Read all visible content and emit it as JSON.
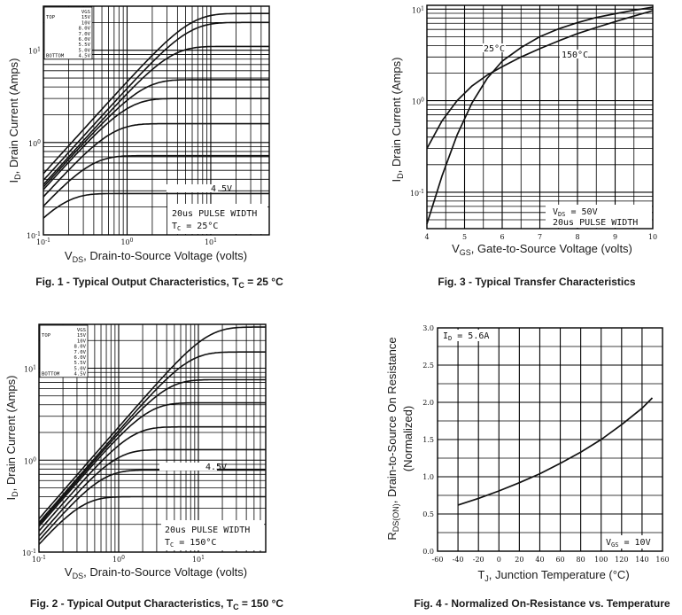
{
  "chart_data": [
    {
      "id": "fig1",
      "type": "line",
      "caption": "Fig. 1 -  Typical Output Characteristics, T",
      "caption_sub": "C",
      "caption_tail": " = 25 °C",
      "xlabel_pre": "V",
      "xlabel_sub": "DS",
      "xlabel_post": ", Drain-to-Source Voltage (volts)",
      "ylabel_pre": "I",
      "ylabel_sub": "D",
      "ylabel_post": ", Drain Current (Amps)",
      "xscale": "log",
      "yscale": "log",
      "xlim": [
        0.1,
        50
      ],
      "ylim": [
        0.1,
        30
      ],
      "x_ticks": [
        {
          "v": 0.1,
          "base": "10",
          "exp": "-1"
        },
        {
          "v": 1,
          "base": "10",
          "exp": "0"
        },
        {
          "v": 10,
          "base": "10",
          "exp": "1"
        }
      ],
      "y_ticks": [
        {
          "v": 0.1,
          "base": "10",
          "exp": "-1"
        },
        {
          "v": 1,
          "base": "10",
          "exp": "0"
        },
        {
          "v": 10,
          "base": "10",
          "exp": "1"
        }
      ],
      "legend": {
        "rows": [
          [
            "",
            "VGS"
          ],
          [
            "TOP",
            "15V"
          ],
          [
            "",
            "10V"
          ],
          [
            "",
            "8.0V"
          ],
          [
            "",
            "7.0V"
          ],
          [
            "",
            "6.0V"
          ],
          [
            "",
            "5.5V"
          ],
          [
            "",
            "5.0V"
          ],
          [
            "BOTTOM",
            "4.5V"
          ]
        ]
      },
      "curve_label": "4.5V",
      "note_lines": [
        {
          "pre": "20us PULSE WIDTH",
          "sub": "",
          "post": ""
        },
        {
          "pre": "T",
          "sub": "C",
          "post": " = 25°C"
        }
      ],
      "series": [
        {
          "name": "15V",
          "sat": 25,
          "k": 4.6
        },
        {
          "name": "10V",
          "sat": 20,
          "k": 3.9
        },
        {
          "name": "8.0V",
          "sat": 11,
          "k": 3.5
        },
        {
          "name": "7.0V",
          "sat": 4.8,
          "k": 3.3
        },
        {
          "name": "6.0V",
          "sat": 3.0,
          "k": 3.1
        },
        {
          "name": "5.5V",
          "sat": 1.6,
          "k": 2.6
        },
        {
          "name": "5.0V",
          "sat": 0.72,
          "k": 2.1
        },
        {
          "name": "4.5V",
          "sat": 0.28,
          "k": 1.7
        }
      ]
    },
    {
      "id": "fig2",
      "type": "line",
      "caption": "Fig. 2 - Typical Output Characteristics, T",
      "caption_sub": "C",
      "caption_tail": " = 150 °C",
      "xlabel_pre": "V",
      "xlabel_sub": "DS",
      "xlabel_post": ", Drain-to-Source Voltage (volts)",
      "ylabel_pre": "I",
      "ylabel_sub": "D",
      "ylabel_post": ", Drain Current (Amps)",
      "xscale": "log",
      "yscale": "log",
      "xlim": [
        0.1,
        70
      ],
      "ylim": [
        0.1,
        30
      ],
      "x_ticks": [
        {
          "v": 0.1,
          "base": "10",
          "exp": "-1"
        },
        {
          "v": 1,
          "base": "10",
          "exp": "0"
        },
        {
          "v": 10,
          "base": "10",
          "exp": "1"
        }
      ],
      "y_ticks": [
        {
          "v": 0.1,
          "base": "10",
          "exp": "-1"
        },
        {
          "v": 1,
          "base": "10",
          "exp": "0"
        },
        {
          "v": 10,
          "base": "10",
          "exp": "1"
        }
      ],
      "legend": {
        "rows": [
          [
            "",
            "VGS"
          ],
          [
            "TOP",
            "15V"
          ],
          [
            "",
            "10V"
          ],
          [
            "",
            "8.0V"
          ],
          [
            "",
            "7.0V"
          ],
          [
            "",
            "6.0V"
          ],
          [
            "",
            "5.5V"
          ],
          [
            "",
            "5.0V"
          ],
          [
            "BOTTOM",
            "4.5V"
          ]
        ]
      },
      "curve_label": "4.5V",
      "note_lines": [
        {
          "pre": "20us PULSE WIDTH",
          "sub": "",
          "post": ""
        },
        {
          "pre": "T",
          "sub": "C",
          "post": " = 150°C"
        }
      ],
      "series": [
        {
          "name": "15V",
          "sat": 28,
          "k": 2.3
        },
        {
          "name": "10V",
          "sat": 15,
          "k": 2.1
        },
        {
          "name": "8.0V",
          "sat": 7.5,
          "k": 2.0
        },
        {
          "name": "7.0V",
          "sat": 4.2,
          "k": 1.9
        },
        {
          "name": "6.0V",
          "sat": 2.3,
          "k": 1.7
        },
        {
          "name": "5.5V",
          "sat": 1.3,
          "k": 1.5
        },
        {
          "name": "5.0V",
          "sat": 0.78,
          "k": 1.35
        },
        {
          "name": "4.5V",
          "sat": 0.4,
          "k": 1.25
        }
      ]
    },
    {
      "id": "fig3",
      "type": "line",
      "caption": "Fig. 3 - Typical Transfer Characteristics",
      "xlabel_pre": "V",
      "xlabel_sub": "GS",
      "xlabel_post": ", Gate-to-Source Voltage (volts)",
      "ylabel_pre": "I",
      "ylabel_sub": "D",
      "ylabel_post": ", Drain Current (Amps)",
      "xscale": "linear",
      "yscale": "log",
      "xlim": [
        4,
        10
      ],
      "ylim": [
        0.04,
        11
      ],
      "x_ticks": [
        4,
        5,
        6,
        7,
        8,
        9,
        10
      ],
      "y_ticks": [
        {
          "v": 0.1,
          "base": "10",
          "exp": "-1"
        },
        {
          "v": 1,
          "base": "10",
          "exp": "0"
        },
        {
          "v": 10,
          "base": "10",
          "exp": "1"
        }
      ],
      "note_lines": [
        {
          "pre": "V",
          "sub": "DS",
          "post": " = 50V"
        },
        {
          "pre": "20us PULSE WIDTH",
          "sub": "",
          "post": ""
        }
      ],
      "series": [
        {
          "name": "25°C",
          "x": [
            4.0,
            4.4,
            4.8,
            5.2,
            5.6,
            6.0,
            6.5,
            7.0,
            7.5,
            8.0,
            8.5,
            9.0,
            9.5,
            10.0
          ],
          "y": [
            0.045,
            0.15,
            0.42,
            0.95,
            1.75,
            2.7,
            3.8,
            5.0,
            6.1,
            7.1,
            8.1,
            8.9,
            9.7,
            10.5
          ]
        },
        {
          "name": "150°C",
          "x": [
            4.0,
            4.4,
            4.8,
            5.2,
            5.6,
            6.0,
            6.5,
            7.0,
            7.5,
            8.0,
            8.5,
            9.0,
            9.5,
            10.0
          ],
          "y": [
            0.3,
            0.6,
            1.0,
            1.45,
            1.9,
            2.35,
            3.0,
            3.7,
            4.5,
            5.4,
            6.3,
            7.3,
            8.4,
            9.6
          ]
        }
      ]
    },
    {
      "id": "fig4",
      "type": "line",
      "caption": "Fig. 4 - Normalized On-Resistance vs. Temperature",
      "xlabel_pre": "T",
      "xlabel_sub": "J",
      "xlabel_post": ", Junction Temperature (°C)",
      "ylabel_pre": "R",
      "ylabel_sub": "DS(ON)",
      "ylabel_post": ", Drain-to-Source On Resistance",
      "ylabel2": "(Normalized)",
      "xscale": "linear",
      "yscale": "linear",
      "xlim": [
        -60,
        160
      ],
      "ylim": [
        0,
        3.0
      ],
      "x_ticks": [
        -60,
        -40,
        -20,
        0,
        20,
        40,
        60,
        80,
        100,
        120,
        140,
        160
      ],
      "y_ticks": [
        "0.0",
        "0.5",
        "1.0",
        "1.5",
        "2.0",
        "2.5",
        "3.0"
      ],
      "note_lines": [
        {
          "pre": "I",
          "sub": "D",
          "post": " = 5.6A"
        },
        {
          "pre": "V",
          "sub": "GS",
          "post": " = 10V"
        }
      ],
      "series": [
        {
          "name": "RDS(on)",
          "x": [
            -40,
            -20,
            0,
            20,
            40,
            60,
            80,
            100,
            120,
            140,
            150
          ],
          "y": [
            0.62,
            0.71,
            0.81,
            0.92,
            1.04,
            1.18,
            1.33,
            1.5,
            1.7,
            1.92,
            2.06
          ]
        }
      ]
    }
  ]
}
